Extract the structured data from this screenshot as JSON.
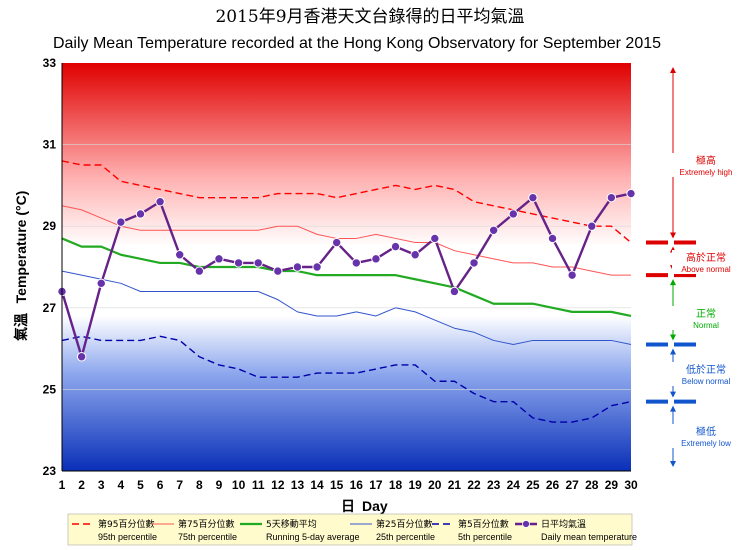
{
  "title_zh": "2015年9月香港天文台錄得的日平均氣溫",
  "title_en": "Daily Mean Temperature recorded at the Hong Kong Observatory for September 2015",
  "colors": {
    "p95": "#ff0000",
    "p75": "#ff5555",
    "avg5": "#22aa22",
    "p25": "#3355cc",
    "p5": "#0000aa",
    "daily_line": "#662288",
    "daily_marker": "#6633aa",
    "bracket_red": "#dd0000",
    "bracket_green": "#00aa00",
    "bracket_blue": "#1155cc",
    "legend_bg": "#fffbcc"
  },
  "chart_data": {
    "type": "line",
    "title": "Daily Mean Temperature recorded at the Hong Kong Observatory for September 2015",
    "xlabel_zh": "日",
    "xlabel_en": "Day",
    "ylabel_zh": "氣溫",
    "ylabel_en": "Temperature (°C)",
    "xlim": [
      1,
      30
    ],
    "ylim": [
      23,
      33
    ],
    "yticks": [
      23,
      25,
      27,
      29,
      31,
      33
    ],
    "x": [
      1,
      2,
      3,
      4,
      5,
      6,
      7,
      8,
      9,
      10,
      11,
      12,
      13,
      14,
      15,
      16,
      17,
      18,
      19,
      20,
      21,
      22,
      23,
      24,
      25,
      26,
      27,
      28,
      29,
      30
    ],
    "series": [
      {
        "key": "p95",
        "name_zh": "第95百分位數",
        "name_en": "95th percentile",
        "style": "dashed",
        "values": [
          30.6,
          30.5,
          30.5,
          30.1,
          30.0,
          29.9,
          29.8,
          29.7,
          29.7,
          29.7,
          29.7,
          29.8,
          29.8,
          29.8,
          29.7,
          29.8,
          29.9,
          30.0,
          29.9,
          30.0,
          29.9,
          29.6,
          29.5,
          29.4,
          29.3,
          29.2,
          29.1,
          29.0,
          29.0,
          28.6
        ]
      },
      {
        "key": "p75",
        "name_zh": "第75百分位數",
        "name_en": "75th percentile",
        "style": "thin",
        "values": [
          29.5,
          29.4,
          29.2,
          29.0,
          28.9,
          28.9,
          28.9,
          28.9,
          28.9,
          28.9,
          28.9,
          29.0,
          29.0,
          28.8,
          28.7,
          28.7,
          28.8,
          28.7,
          28.6,
          28.6,
          28.4,
          28.3,
          28.2,
          28.1,
          28.1,
          28.0,
          28.0,
          27.9,
          27.8,
          27.8
        ]
      },
      {
        "key": "avg5",
        "name_zh": "5天移動平均",
        "name_en": "Running 5-day average",
        "style": "thick",
        "values": [
          28.7,
          28.5,
          28.5,
          28.3,
          28.2,
          28.1,
          28.1,
          28.0,
          28.0,
          28.0,
          28.0,
          27.9,
          27.9,
          27.8,
          27.8,
          27.8,
          27.8,
          27.8,
          27.7,
          27.6,
          27.5,
          27.3,
          27.1,
          27.1,
          27.1,
          27.0,
          26.9,
          26.9,
          26.9,
          26.8
        ]
      },
      {
        "key": "p25",
        "name_zh": "第25百分位數",
        "name_en": "25th percentile",
        "style": "thin",
        "values": [
          27.9,
          27.8,
          27.7,
          27.6,
          27.4,
          27.4,
          27.4,
          27.4,
          27.4,
          27.4,
          27.4,
          27.2,
          26.9,
          26.8,
          26.8,
          26.9,
          26.8,
          27.0,
          26.9,
          26.7,
          26.5,
          26.4,
          26.2,
          26.1,
          26.2,
          26.2,
          26.2,
          26.2,
          26.2,
          26.1
        ]
      },
      {
        "key": "p5",
        "name_zh": "第5百分位數",
        "name_en": "5th percentile",
        "style": "dashed",
        "values": [
          26.2,
          26.3,
          26.2,
          26.2,
          26.2,
          26.3,
          26.2,
          25.8,
          25.6,
          25.5,
          25.3,
          25.3,
          25.3,
          25.4,
          25.4,
          25.4,
          25.5,
          25.6,
          25.6,
          25.2,
          25.2,
          24.9,
          24.7,
          24.7,
          24.3,
          24.2,
          24.2,
          24.3,
          24.6,
          24.7
        ]
      },
      {
        "key": "daily",
        "name_zh": "日平均氣溫",
        "name_en": "Daily mean temperature",
        "style": "markers",
        "values": [
          27.4,
          25.8,
          27.6,
          29.1,
          29.3,
          29.6,
          28.3,
          27.9,
          28.2,
          28.1,
          28.1,
          27.9,
          28.0,
          28.0,
          28.6,
          28.1,
          28.2,
          28.5,
          28.3,
          28.7,
          27.4,
          28.1,
          28.9,
          29.3,
          29.7,
          28.7,
          27.8,
          29.0,
          29.7,
          29.8
        ]
      }
    ],
    "categories": [
      {
        "key": "extremely_high",
        "zh": "極高",
        "en": "Extremely high",
        "range": [
          28.6,
          33
        ]
      },
      {
        "key": "above_normal",
        "zh": "高於正常",
        "en": "Above normal",
        "range": [
          27.8,
          28.6
        ]
      },
      {
        "key": "normal",
        "zh": "正常",
        "en": "Normal",
        "range": [
          26.1,
          27.8
        ]
      },
      {
        "key": "below_normal",
        "zh": "低於正常",
        "en": "Below normal",
        "range": [
          24.7,
          26.1
        ]
      },
      {
        "key": "extremely_low",
        "zh": "極低",
        "en": "Extremely low",
        "range": [
          23,
          24.7
        ]
      }
    ]
  }
}
